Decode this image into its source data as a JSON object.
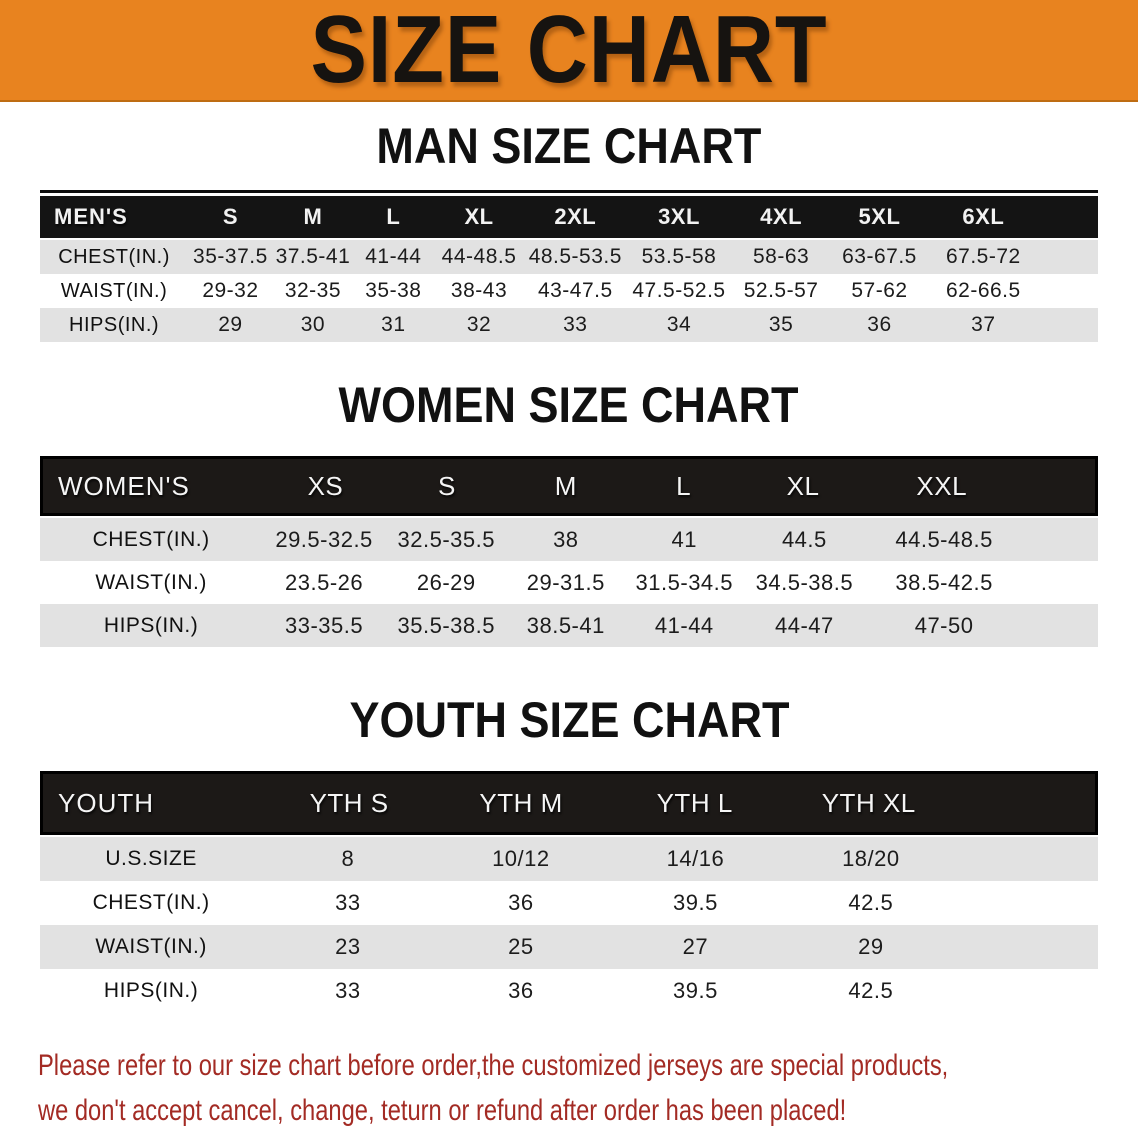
{
  "banner": {
    "title": "SIZE CHART"
  },
  "sections": {
    "men": {
      "heading": "MAN SIZE CHART",
      "header": [
        "MEN'S",
        "S",
        "M",
        "L",
        "XL",
        "2XL",
        "3XL",
        "4XL",
        "5XL",
        "6XL"
      ],
      "rows": [
        [
          "CHEST(IN.)",
          "35-37.5",
          "37.5-41",
          "41-44",
          "44-48.5",
          "48.5-53.5",
          "53.5-58",
          "58-63",
          "63-67.5",
          "67.5-72"
        ],
        [
          "WAIST(IN.)",
          "29-32",
          "32-35",
          "35-38",
          "38-43",
          "43-47.5",
          "47.5-52.5",
          "52.5-57",
          "57-62",
          "62-66.5"
        ],
        [
          "HIPS(IN.)",
          "29",
          "30",
          "31",
          "32",
          "33",
          "34",
          "35",
          "36",
          "37"
        ]
      ]
    },
    "women": {
      "heading": "WOMEN SIZE CHART",
      "header": [
        "WOMEN'S",
        "XS",
        "S",
        "M",
        "L",
        "XL",
        "XXL"
      ],
      "rows": [
        [
          "CHEST(IN.)",
          "29.5-32.5",
          "32.5-35.5",
          "38",
          "41",
          "44.5",
          "44.5-48.5"
        ],
        [
          "WAIST(IN.)",
          "23.5-26",
          "26-29",
          "29-31.5",
          "31.5-34.5",
          "34.5-38.5",
          "38.5-42.5"
        ],
        [
          "HIPS(IN.)",
          "33-35.5",
          "35.5-38.5",
          "38.5-41",
          "41-44",
          "44-47",
          "47-50"
        ]
      ]
    },
    "youth": {
      "heading": "YOUTH SIZE CHART",
      "header": [
        "YOUTH",
        "YTH S",
        "YTH M",
        "YTH L",
        "YTH XL"
      ],
      "rows": [
        [
          "U.S.SIZE",
          "8",
          "10/12",
          "14/16",
          "18/20"
        ],
        [
          "CHEST(IN.)",
          "33",
          "36",
          "39.5",
          "42.5"
        ],
        [
          "WAIST(IN.)",
          "23",
          "25",
          "27",
          "29"
        ],
        [
          "HIPS(IN.)",
          "33",
          "36",
          "39.5",
          "42.5"
        ]
      ]
    }
  },
  "disclaimer": {
    "line1": "Please refer to our size chart before order,the customized jerseys are special products,",
    "line2": "we don't accept cancel, change, teturn or refund after order has been placed!"
  },
  "colors": {
    "banner_orange": "#E8831F",
    "header_black": "#141414",
    "panel_black": "#1C1917",
    "row_gray": "#E2E2E2",
    "disclaimer_red": "#A32B24"
  }
}
